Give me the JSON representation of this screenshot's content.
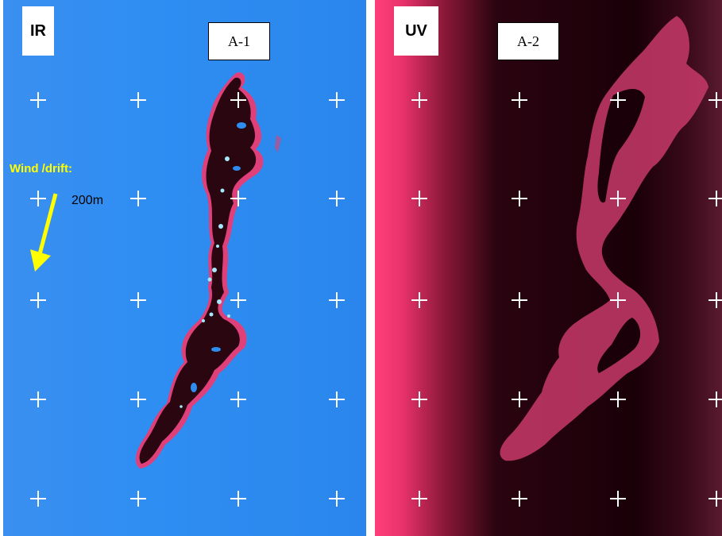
{
  "ir_panel": {
    "mode_label": "IR",
    "id_label": "A-1",
    "wind_label": "Wind /drift:",
    "scale_label": "200m",
    "colors": {
      "water": "#2f8cf0",
      "oil_dark": "#2a0610",
      "oil_edge": "#e0407a",
      "thick_spots": "#a8e8ff",
      "arrow": "#ffff00"
    },
    "icons": [
      "crosshair-grid",
      "wind-arrow-icon"
    ]
  },
  "uv_panel": {
    "mode_label": "UV",
    "id_label": "A-2",
    "colors": {
      "background": "#1a0008",
      "glow": "#ff3f7a",
      "slick": "#c83a6a"
    },
    "icons": [
      "crosshair-grid"
    ]
  }
}
